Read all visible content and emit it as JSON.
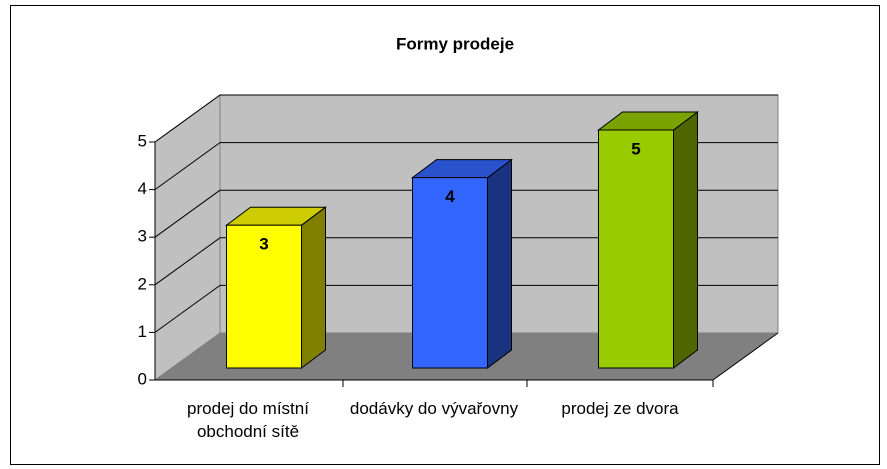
{
  "chart_data": {
    "type": "bar3d",
    "title": "Formy prodeje",
    "categories": [
      "prodej do místní obchodní sítě",
      "dodávky do vývařovny",
      "prodej ze dvora"
    ],
    "values": [
      3,
      4,
      5
    ],
    "colors": [
      "#ffff00",
      "#3366ff",
      "#99cc00"
    ],
    "ylim": [
      0,
      5
    ],
    "yticks": [
      0,
      1,
      2,
      3,
      4,
      5
    ],
    "grid": true
  }
}
